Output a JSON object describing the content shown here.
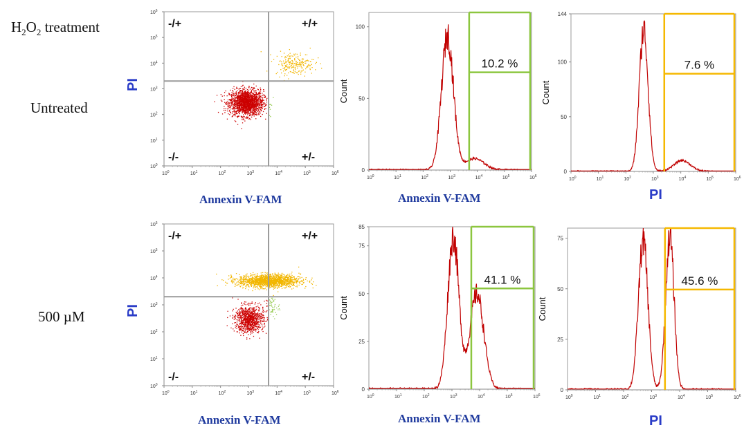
{
  "header": {
    "prefix": "H",
    "sub1": "2",
    "mid": "O",
    "sub2": "2",
    "suffix": " treatment"
  },
  "row_labels": [
    "Untreated",
    "500 µM"
  ],
  "quadrant_labels": {
    "ul": "-/+",
    "ur": "+/+",
    "ll": "-/-",
    "lr": "+/-"
  },
  "labels": {
    "annexin": "Annexin V-FAM",
    "pi": "PI",
    "count": "Count"
  },
  "colors": {
    "trace": "#c00000",
    "gate_green": "#8cc63f",
    "gate_yellow": "#f5b800",
    "label_blue": "#1f3a9e",
    "pi_blue": "#2a3cc7",
    "quad_line": "#9a9a9a",
    "dot_red": "#cc0000",
    "dot_yellow": "#f2b600",
    "dot_green": "#99cc55"
  },
  "chart_data": [
    {
      "id": "scatter-untreated",
      "type": "scatter",
      "xlabel": "Annexin V-FAM",
      "ylabel": "PI",
      "xscale": "log",
      "yscale": "log",
      "xlim": [
        1,
        1000000
      ],
      "ylim": [
        1,
        1000000
      ],
      "quadrant_gate": {
        "x": 5000,
        "y": 2000
      },
      "clusters": [
        {
          "population": "-/-",
          "center": [
            800,
            300
          ],
          "spread": [
            0.3,
            0.25
          ],
          "count": 1800
        },
        {
          "population": "+/+",
          "center": [
            40000,
            10000
          ],
          "spread": [
            0.35,
            0.22
          ],
          "count": 220
        }
      ]
    },
    {
      "id": "hist-annexin-untreated",
      "type": "line",
      "xlabel": "Annexin V-FAM",
      "ylabel": "Count",
      "xscale": "log",
      "xlim": [
        1,
        1000000
      ],
      "ylim": [
        0,
        110
      ],
      "yticks": [
        0,
        50,
        100
      ],
      "gate": {
        "from": 5000,
        "to": 1000000,
        "label": "10.2 %"
      },
      "peaks": [
        {
          "log_center": 2.9,
          "width": 0.22,
          "height": 94
        },
        {
          "log_center": 3.9,
          "width": 0.35,
          "height": 8
        }
      ]
    },
    {
      "id": "hist-pi-untreated",
      "type": "line",
      "xlabel": "PI",
      "ylabel": "Count",
      "xscale": "log",
      "xlim": [
        1,
        1000000
      ],
      "ylim": [
        0,
        144
      ],
      "yticks": [
        0,
        50,
        100,
        144
      ],
      "gate": {
        "from": 2500,
        "to": 1000000,
        "label": "7.6 %"
      },
      "peaks": [
        {
          "log_center": 2.65,
          "width": 0.16,
          "height": 130
        },
        {
          "log_center": 4.05,
          "width": 0.3,
          "height": 10
        }
      ]
    },
    {
      "id": "scatter-500uM",
      "type": "scatter",
      "xlabel": "Annexin V-FAM",
      "ylabel": "PI",
      "xscale": "log",
      "yscale": "log",
      "xlim": [
        1,
        1000000
      ],
      "ylim": [
        1,
        1000000
      ],
      "quadrant_gate": {
        "x": 5000,
        "y": 2000
      },
      "clusters": [
        {
          "population": "-/-",
          "center": [
            1000,
            300
          ],
          "spread": [
            0.25,
            0.25
          ],
          "count": 900
        },
        {
          "population": "+/+",
          "center": [
            5000,
            8000
          ],
          "spread": [
            0.55,
            0.12
          ],
          "count": 1500
        },
        {
          "population": "+/-",
          "center": [
            6000,
            900
          ],
          "spread": [
            0.15,
            0.2
          ],
          "count": 60
        }
      ]
    },
    {
      "id": "hist-annexin-500uM",
      "type": "line",
      "xlabel": "Annexin V-FAM",
      "ylabel": "Count",
      "xscale": "log",
      "xlim": [
        1,
        1000000
      ],
      "ylim": [
        0,
        85
      ],
      "yticks": [
        0,
        25,
        50,
        75,
        85
      ],
      "gate": {
        "from": 5000,
        "to": 1000000,
        "label": "41.1 %"
      },
      "peaks": [
        {
          "log_center": 3.05,
          "width": 0.2,
          "height": 80
        },
        {
          "log_center": 3.9,
          "width": 0.25,
          "height": 50
        }
      ]
    },
    {
      "id": "hist-pi-500uM",
      "type": "line",
      "xlabel": "PI",
      "ylabel": "Count",
      "xscale": "log",
      "xlim": [
        1,
        1000000
      ],
      "ylim": [
        0,
        80
      ],
      "yticks": [
        0,
        25,
        50,
        75
      ],
      "gate": {
        "from": 3000,
        "to": 1000000,
        "label": "45.6 %"
      },
      "peaks": [
        {
          "log_center": 2.7,
          "width": 0.17,
          "height": 74
        },
        {
          "log_center": 3.65,
          "width": 0.15,
          "height": 76
        }
      ]
    }
  ]
}
